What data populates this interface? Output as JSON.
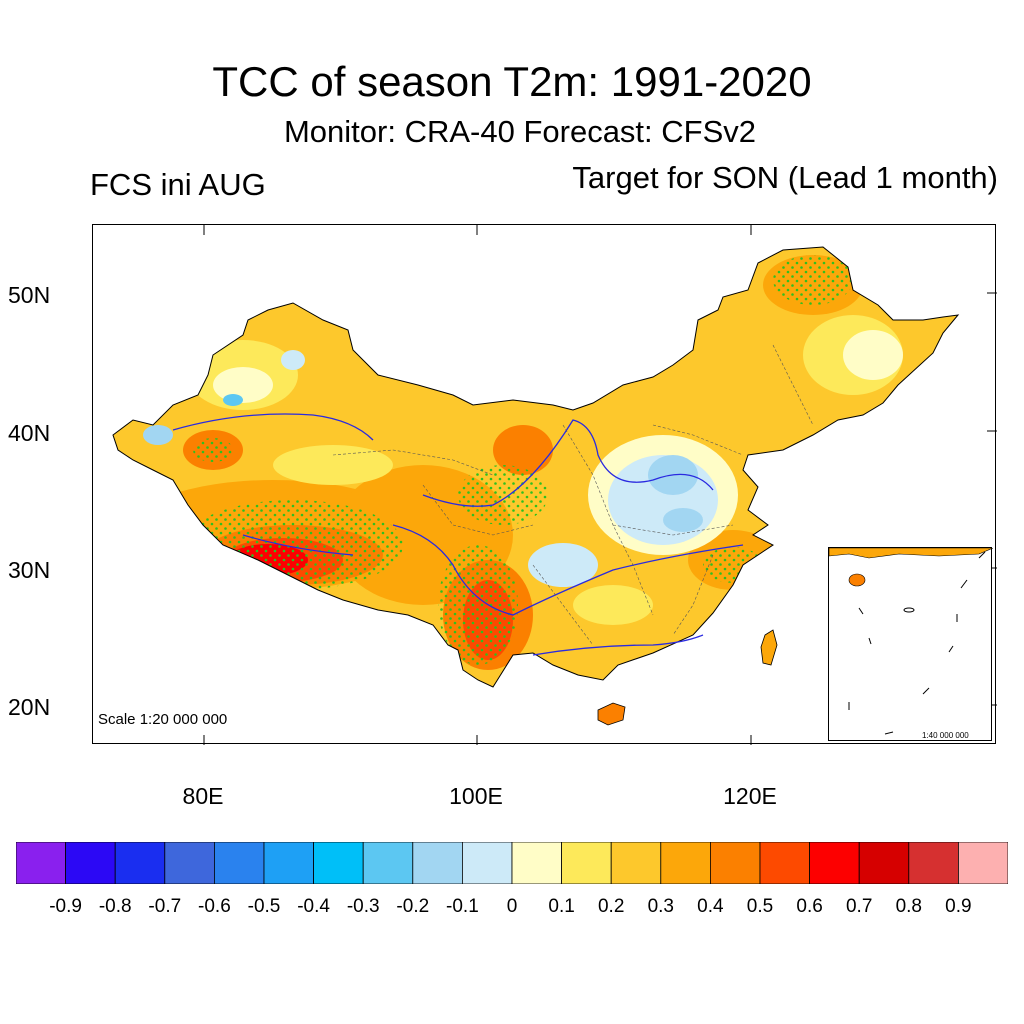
{
  "title": "TCC of season T2m: 1991-2020",
  "subtitle": "Monitor: CRA-40   Forecast: CFSv2",
  "left_label": "FCS ini AUG",
  "right_label": "Target for SON (Lead 1 month)",
  "scale_label": "Scale 1:20 000 000",
  "inset_scale_label": "1:40 000 000",
  "lat_labels": [
    "50N",
    "40N",
    "30N",
    "20N"
  ],
  "lon_labels": [
    "80E",
    "100E",
    "120E"
  ],
  "colorbar": {
    "colors": [
      "#8a20ee",
      "#2c08f5",
      "#1a2ef0",
      "#3e67dc",
      "#2a82ee",
      "#1ea0f5",
      "#00bff8",
      "#5cc7f2",
      "#a2d6f2",
      "#cdeaf8",
      "#fffdc7",
      "#fde95a",
      "#fdc82c",
      "#fca70a",
      "#fb8000",
      "#fd4a00",
      "#fd0000",
      "#d60000",
      "#d63030",
      "#fdb0b0"
    ],
    "labels": [
      "-0.9",
      "-0.8",
      "-0.7",
      "-0.6",
      "-0.5",
      "-0.4",
      "-0.3",
      "-0.2",
      "-0.1",
      "0",
      "0.1",
      "0.2",
      "0.3",
      "0.4",
      "0.5",
      "0.6",
      "0.7",
      "0.8",
      "0.9"
    ]
  }
}
